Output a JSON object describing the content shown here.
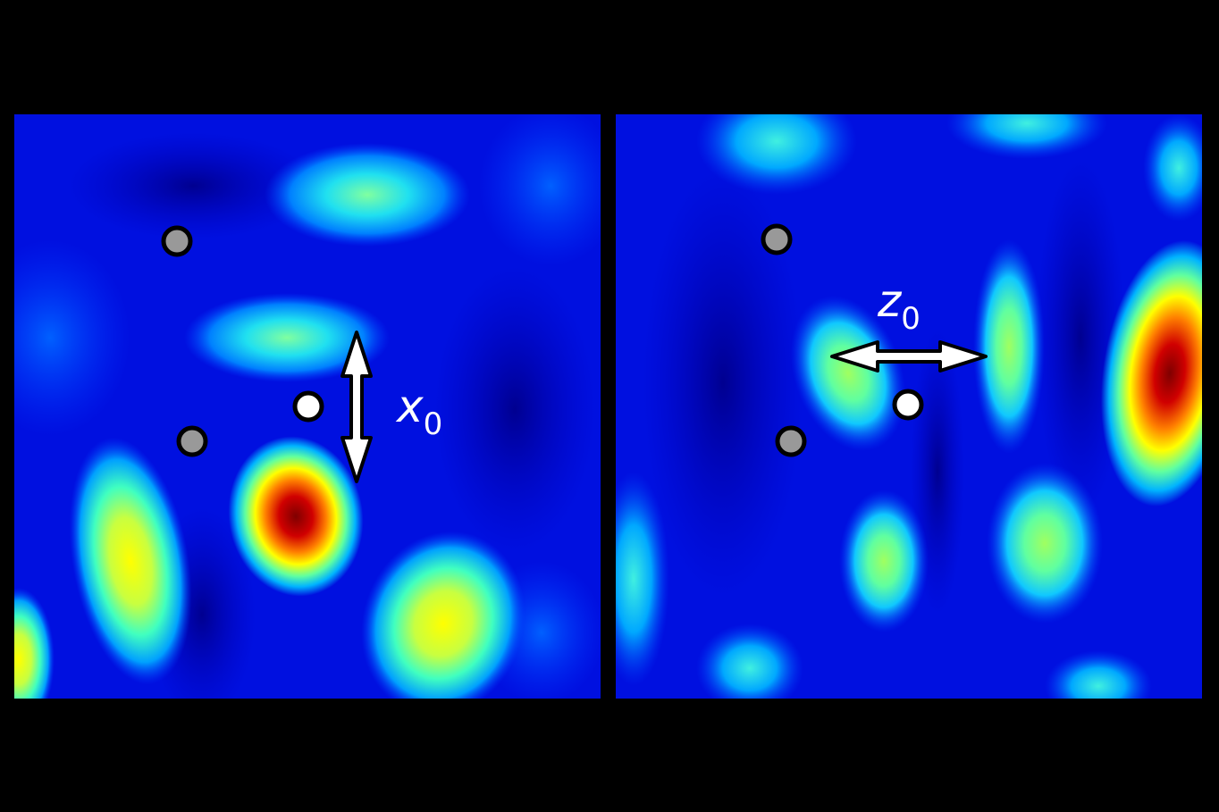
{
  "panels": [
    {
      "id": "left",
      "label": {
        "symbol": "x",
        "subscript": "0"
      },
      "arrow_orientation": "vertical"
    },
    {
      "id": "right",
      "label": {
        "symbol": "z",
        "subscript": "0"
      },
      "arrow_orientation": "horizontal"
    }
  ],
  "colors": {
    "background": "#000000",
    "colormap": [
      "#00007f",
      "#0000ff",
      "#00b4ff",
      "#7cff7a",
      "#ffff00",
      "#ff8000",
      "#ff0000",
      "#7f0000"
    ],
    "marker_gray": "#999999",
    "marker_white": "#ffffff",
    "marker_stroke": "#000000"
  }
}
